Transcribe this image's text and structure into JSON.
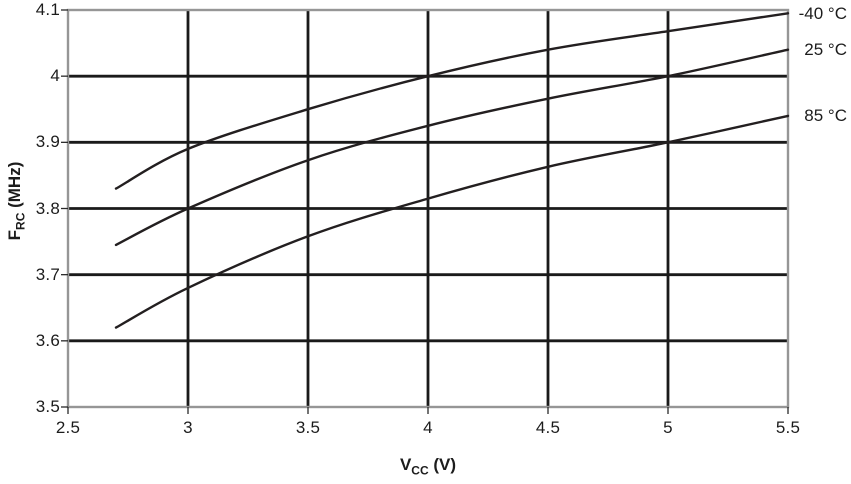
{
  "chart_data": {
    "type": "line",
    "title": "",
    "xlabel": "VCC (V)",
    "ylabel": "FRC (MHz)",
    "xlabel_parts": {
      "main": "V",
      "sub": "CC",
      "unit": " (V)"
    },
    "ylabel_parts": {
      "main": "F",
      "sub": "RC",
      "unit": " (MHz)"
    },
    "xlim": [
      2.5,
      5.5
    ],
    "ylim": [
      3.5,
      4.1
    ],
    "grid": true,
    "legend_position": "right-outside",
    "x_ticks": [
      2.5,
      3,
      3.5,
      4,
      4.5,
      5,
      5.5
    ],
    "x_tick_labels": [
      "2.5",
      "3",
      "3.5",
      "4",
      "4.5",
      "5",
      "5.5"
    ],
    "y_ticks": [
      3.5,
      3.6,
      3.7,
      3.8,
      3.9,
      4,
      4.1
    ],
    "y_tick_labels": [
      "3.5",
      "3.6",
      "3.7",
      "3.8",
      "3.9",
      "4",
      "4.1"
    ],
    "x": [
      2.7,
      3.0,
      3.5,
      4.0,
      4.5,
      5.0,
      5.5
    ],
    "series": [
      {
        "name": "-40 °C",
        "values": [
          3.83,
          3.89,
          3.95,
          4.0,
          4.04,
          4.068,
          4.095
        ]
      },
      {
        "name": "25 °C",
        "values": [
          3.745,
          3.8,
          3.873,
          3.925,
          3.966,
          4.0,
          4.04
        ]
      },
      {
        "name": "85 °C",
        "values": [
          3.62,
          3.68,
          3.758,
          3.815,
          3.863,
          3.9,
          3.94
        ]
      }
    ],
    "colors": {
      "curve": "#231f20",
      "grid": "#1a1a1a",
      "frame": "#969696",
      "tick": "#2a2a2a",
      "text": "#1c1c1c"
    }
  }
}
